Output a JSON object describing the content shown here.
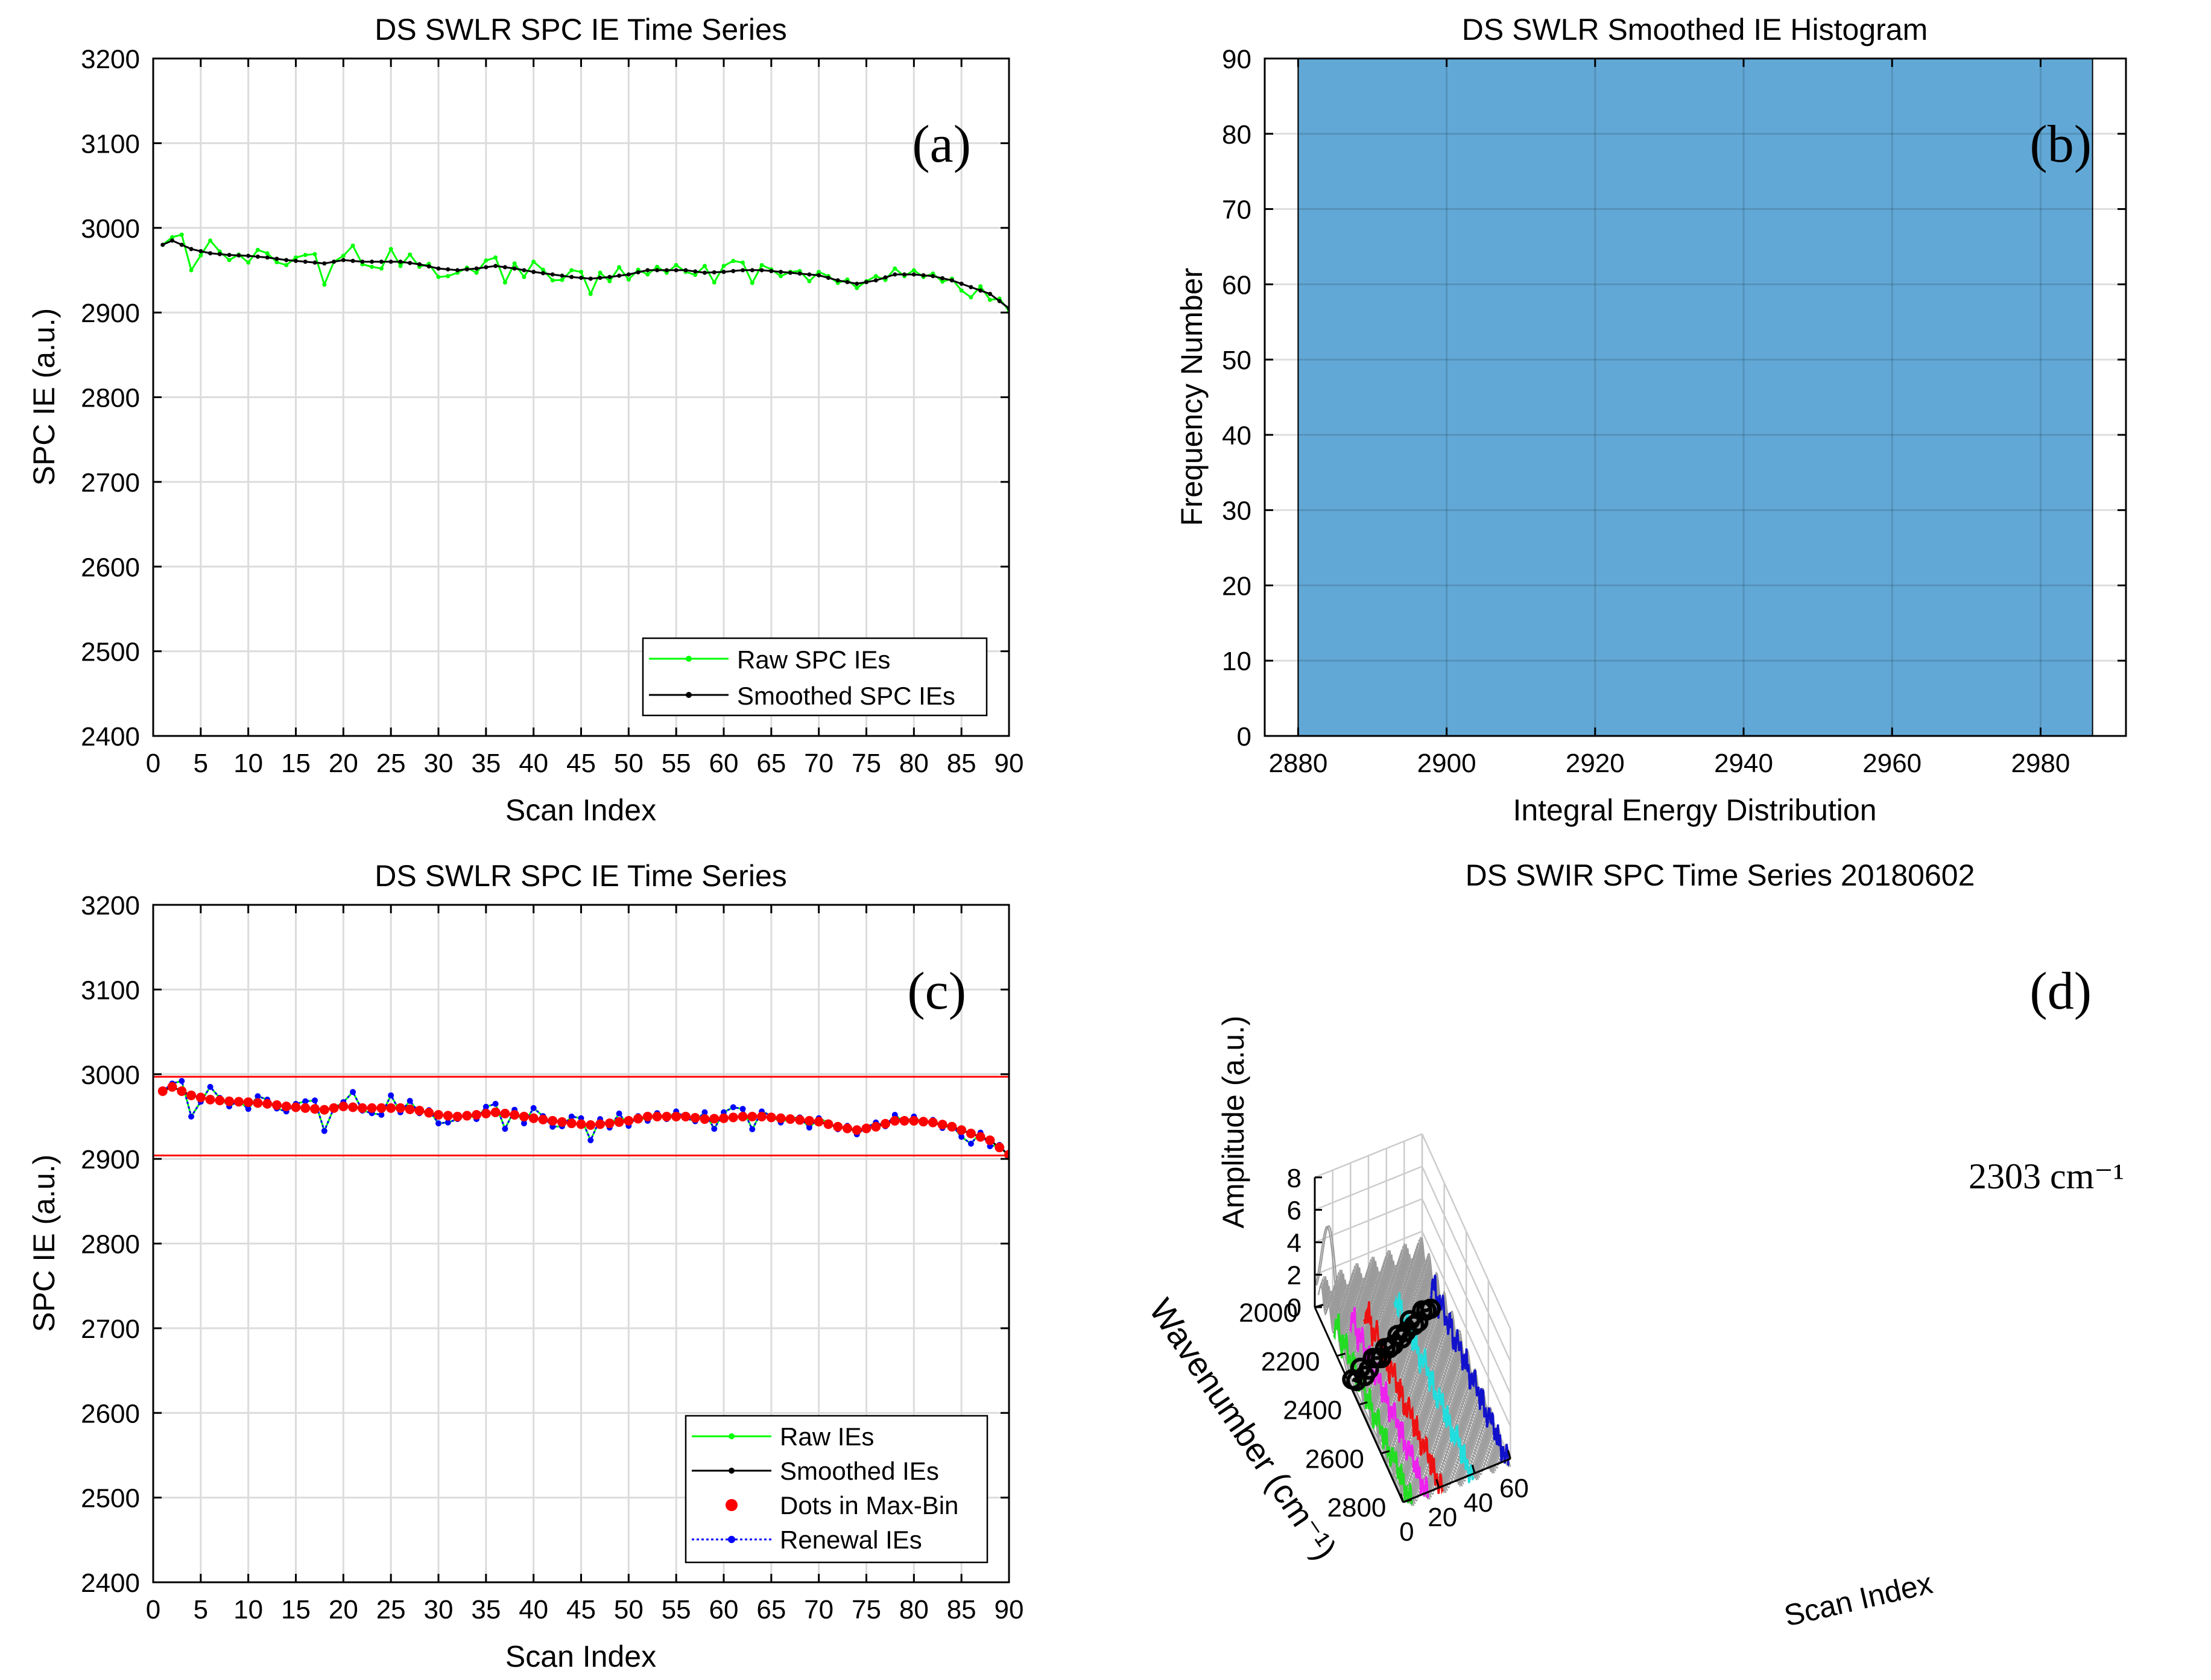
{
  "colors": {
    "raw": "#00ff00",
    "smoothed": "#000000",
    "maxbin": "#ff0000",
    "renewal": "#0000ff",
    "hist": "#62a8d6",
    "grid": "#dcdcdc",
    "mesh": "#9a9a9a",
    "green": "#22dd22",
    "magenta": "#ee22ee",
    "red": "#ee1111",
    "cyan": "#22dddd",
    "blue": "#1111cc"
  },
  "chart_data": [
    {
      "id": "a",
      "type": "line",
      "title": "DS SWLR SPC IE Time Series",
      "panel_label": "(a)",
      "xlabel": "Scan Index",
      "ylabel": "SPC IE (a.u.)",
      "xlim": [
        0,
        90
      ],
      "ylim": [
        2400,
        3200
      ],
      "xticks": [
        "0",
        "5",
        "10",
        "15",
        "20",
        "25",
        "30",
        "35",
        "40",
        "45",
        "50",
        "55",
        "60",
        "65",
        "70",
        "75",
        "80",
        "85",
        "90"
      ],
      "yticks": [
        "2400",
        "2500",
        "2600",
        "2700",
        "2800",
        "2900",
        "3000",
        "3100",
        "3200"
      ],
      "legend": [
        "Raw SPC IEs",
        "Smoothed SPC IEs"
      ],
      "smoothed_anchors": [
        [
          1,
          2980
        ],
        [
          2,
          2985
        ],
        [
          4,
          2975
        ],
        [
          6,
          2970
        ],
        [
          8,
          2968
        ],
        [
          10,
          2967
        ],
        [
          12,
          2965
        ],
        [
          14,
          2962
        ],
        [
          16,
          2960
        ],
        [
          18,
          2958
        ],
        [
          20,
          2962
        ],
        [
          22,
          2960
        ],
        [
          24,
          2960
        ],
        [
          26,
          2960
        ],
        [
          28,
          2957
        ],
        [
          30,
          2952
        ],
        [
          32,
          2950
        ],
        [
          34,
          2952
        ],
        [
          36,
          2955
        ],
        [
          38,
          2952
        ],
        [
          40,
          2948
        ],
        [
          42,
          2945
        ],
        [
          44,
          2942
        ],
        [
          46,
          2940
        ],
        [
          48,
          2942
        ],
        [
          50,
          2945
        ],
        [
          52,
          2950
        ],
        [
          54,
          2950
        ],
        [
          56,
          2950
        ],
        [
          58,
          2947
        ],
        [
          60,
          2948
        ],
        [
          62,
          2950
        ],
        [
          64,
          2950
        ],
        [
          66,
          2948
        ],
        [
          68,
          2946
        ],
        [
          70,
          2944
        ],
        [
          72,
          2938
        ],
        [
          74,
          2934
        ],
        [
          76,
          2938
        ],
        [
          78,
          2945
        ],
        [
          80,
          2945
        ],
        [
          82,
          2943
        ],
        [
          84,
          2938
        ],
        [
          86,
          2930
        ],
        [
          88,
          2922
        ],
        [
          90,
          2905
        ]
      ],
      "raw_dev": [
        0,
        4,
        12,
        -25,
        -5,
        15,
        3,
        -6,
        1,
        -8,
        8,
        5,
        -4,
        -6,
        4,
        8,
        10,
        -25,
        0,
        5,
        18,
        -3,
        -6,
        -8,
        15,
        -5,
        10,
        -3,
        3,
        -10,
        -8,
        -3,
        2,
        -5,
        8,
        10,
        -18,
        6,
        -8,
        12,
        4,
        -7,
        -5,
        8,
        7,
        -18,
        6,
        -5,
        10,
        -6,
        3,
        -5,
        4,
        -3,
        6,
        -2,
        -4,
        8,
        -12,
        7,
        12,
        9,
        -15,
        6,
        2,
        -5,
        1,
        3,
        -8,
        4,
        2,
        -3,
        3,
        -5,
        1,
        5,
        -3,
        7,
        -2,
        5,
        -2,
        3,
        -4,
        2,
        -8,
        -12,
        5,
        -7,
        3,
        -3
      ]
    },
    {
      "id": "b",
      "type": "bar",
      "title": "DS SWLR Smoothed IE Histogram",
      "panel_label": "(b)",
      "xlabel": "Integral Energy Distribution",
      "ylabel": "Frequency Number",
      "xlim": [
        2875.5,
        2991.5
      ],
      "ylim": [
        0,
        90
      ],
      "xticks": [
        "2880",
        "2900",
        "2920",
        "2940",
        "2960",
        "2980"
      ],
      "yticks": [
        "0",
        "10",
        "20",
        "30",
        "40",
        "50",
        "60",
        "70",
        "80",
        "90"
      ],
      "bins": [
        {
          "from": 2880,
          "to": 2987,
          "count": 90
        }
      ]
    },
    {
      "id": "c",
      "type": "line",
      "title": "DS SWLR SPC IE Time Series",
      "panel_label": "(c)",
      "xlabel": "Scan Index",
      "ylabel": "SPC IE (a.u.)",
      "xlim": [
        0,
        90
      ],
      "ylim": [
        2400,
        3200
      ],
      "xticks": [
        "0",
        "5",
        "10",
        "15",
        "20",
        "25",
        "30",
        "35",
        "40",
        "45",
        "50",
        "55",
        "60",
        "65",
        "70",
        "75",
        "80",
        "85",
        "90"
      ],
      "yticks": [
        "2400",
        "2500",
        "2600",
        "2700",
        "2800",
        "2900",
        "3000",
        "3100",
        "3200"
      ],
      "legend": [
        "Raw IEs",
        "Smoothed IEs",
        "Dots in Max-Bin",
        "Renewal IEs"
      ],
      "hlines": [
        2997,
        2904
      ]
    },
    {
      "id": "d",
      "type": "surface",
      "title": "DS SWIR SPC Time Series  20180602",
      "panel_label": "(d)",
      "xlabel": "Scan Index",
      "ylabel": "Wavenumber (cm⁻¹)",
      "zlabel": "Amplitude (a.u.)",
      "annotation": "2303 cm⁻¹",
      "scan_range": [
        0,
        60
      ],
      "wavenumber_range": [
        2000,
        2800
      ],
      "amplitude_range": [
        0,
        8
      ],
      "xticks": [
        "0",
        "20",
        "40",
        "60"
      ],
      "yticks": [
        "2000",
        "2200",
        "2400",
        "2600",
        "2800"
      ],
      "zticks": [
        "0",
        "2",
        "4",
        "6",
        "8"
      ],
      "trace_points": [
        [
          1,
          0
        ],
        [
          2,
          -0.2
        ],
        [
          3,
          0.5
        ],
        [
          4,
          -0.1
        ],
        [
          5,
          0.2
        ],
        [
          6,
          0.8
        ],
        [
          7,
          0.7
        ],
        [
          8,
          0.6
        ],
        [
          9,
          1.1
        ],
        [
          10,
          1.0
        ],
        [
          11,
          1.1
        ],
        [
          12,
          1.6
        ],
        [
          13,
          1.3
        ],
        [
          14,
          1.6
        ],
        [
          15,
          2.2
        ],
        [
          16,
          1.8
        ],
        [
          17,
          1.9
        ],
        [
          18,
          2.5
        ],
        [
          19,
          2.4
        ],
        [
          20,
          2.4
        ]
      ]
    }
  ]
}
